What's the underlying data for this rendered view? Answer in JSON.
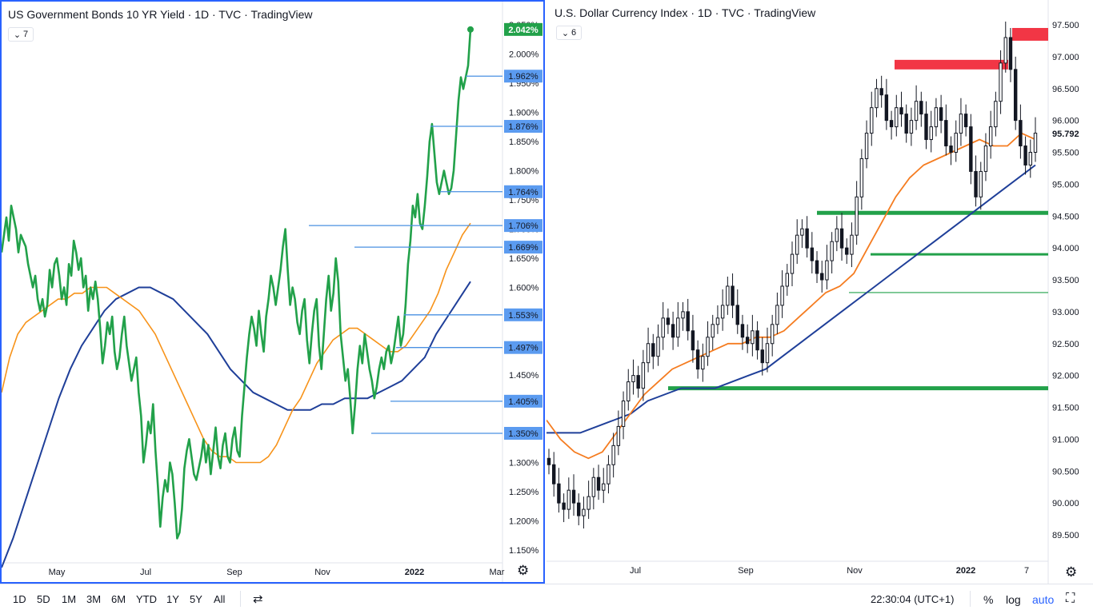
{
  "colors": {
    "green_line": "#22a14a",
    "orange_ma": "#f7931a",
    "orange_ma2": "#f57c20",
    "blue_ma": "#1f3f99",
    "level_line": "#4a90e2",
    "label_bg": "#5b9bf0",
    "price_bg": "#22a14a",
    "resistance": "#f23645",
    "support": "#22a14a",
    "candle": "#131722",
    "frame": "#2962ff"
  },
  "left_pane": {
    "title": "US Government Bonds 10 YR Yield · 1D · TVC · TradingView",
    "collapse_count": "7",
    "gear_icon": "gear-icon"
  },
  "right_pane": {
    "title": "U.S. Dollar Currency Index · 1D · TVC · TradingView",
    "collapse_count": "6",
    "gear_icon": "gear-icon"
  },
  "chart_data": [
    {
      "type": "line",
      "title": "US Government Bonds 10 YR Yield · 1D · TVC · TradingView",
      "x_ticks": [
        "May",
        "Jul",
        "Sep",
        "Nov",
        "2022",
        "Mar"
      ],
      "y_ticks": [
        "2.050%",
        "2.000%",
        "1.950%",
        "1.900%",
        "1.850%",
        "1.800%",
        "1.750%",
        "1.700%",
        "1.650%",
        "1.600%",
        "1.550%",
        "1.500%",
        "1.450%",
        "1.400%",
        "1.350%",
        "1.300%",
        "1.250%",
        "1.200%",
        "1.150%"
      ],
      "ylim": [
        1.13,
        2.08
      ],
      "price_label": "2.042%",
      "level_labels": [
        "1.962%",
        "1.876%",
        "1.764%",
        "1.706%",
        "1.669%",
        "1.553%",
        "1.497%",
        "1.405%",
        "1.350%"
      ],
      "levels": [
        1.962,
        1.876,
        1.764,
        1.706,
        1.669,
        1.553,
        1.497,
        1.405,
        1.35
      ],
      "series": [
        {
          "values": [
            1.66,
            1.69,
            1.72,
            1.68,
            1.74,
            1.72,
            1.7,
            1.66,
            1.69,
            1.68,
            1.67,
            1.64,
            1.62,
            1.6,
            1.62,
            1.58,
            1.56,
            1.58,
            1.55,
            1.57,
            1.63,
            1.6,
            1.64,
            1.65,
            1.62,
            1.58,
            1.6,
            1.57,
            1.64,
            1.62,
            1.68,
            1.66,
            1.63,
            1.65,
            1.6,
            1.62,
            1.56,
            1.6,
            1.58,
            1.61,
            1.58,
            1.53,
            1.47,
            1.5,
            1.54,
            1.52,
            1.55,
            1.49,
            1.46,
            1.48,
            1.52,
            1.55,
            1.5,
            1.47,
            1.44,
            1.46,
            1.48,
            1.42,
            1.38,
            1.3,
            1.33,
            1.37,
            1.35,
            1.4,
            1.32,
            1.26,
            1.19,
            1.24,
            1.27,
            1.25,
            1.3,
            1.28,
            1.23,
            1.17,
            1.18,
            1.22,
            1.29,
            1.32,
            1.34,
            1.31,
            1.28,
            1.27,
            1.29,
            1.31,
            1.34,
            1.3,
            1.33,
            1.28,
            1.32,
            1.36,
            1.31,
            1.29,
            1.33,
            1.35,
            1.31,
            1.3,
            1.34,
            1.36,
            1.32,
            1.31,
            1.38,
            1.43,
            1.48,
            1.52,
            1.55,
            1.53,
            1.5,
            1.56,
            1.52,
            1.49,
            1.55,
            1.58,
            1.62,
            1.6,
            1.57,
            1.6,
            1.63,
            1.67,
            1.7,
            1.63,
            1.57,
            1.6,
            1.58,
            1.54,
            1.52,
            1.56,
            1.58,
            1.51,
            1.47,
            1.52,
            1.56,
            1.58,
            1.5,
            1.46,
            1.52,
            1.58,
            1.62,
            1.56,
            1.59,
            1.65,
            1.61,
            1.52,
            1.48,
            1.44,
            1.46,
            1.41,
            1.35,
            1.4,
            1.46,
            1.5,
            1.47,
            1.52,
            1.49,
            1.46,
            1.44,
            1.41,
            1.43,
            1.46,
            1.48,
            1.46,
            1.49,
            1.5,
            1.47,
            1.49,
            1.52,
            1.55,
            1.5,
            1.52,
            1.57,
            1.64,
            1.68,
            1.74,
            1.72,
            1.76,
            1.71,
            1.7,
            1.74,
            1.79,
            1.85,
            1.88,
            1.83,
            1.78,
            1.76,
            1.78,
            1.8,
            1.78,
            1.76,
            1.77,
            1.8,
            1.86,
            1.92,
            1.96,
            1.94,
            1.96,
            1.98,
            2.042
          ]
        },
        {
          "values": [
            1.42,
            1.48,
            1.52,
            1.54,
            1.55,
            1.56,
            1.57,
            1.58,
            1.58,
            1.59,
            1.59,
            1.6,
            1.6,
            1.6,
            1.59,
            1.58,
            1.57,
            1.56,
            1.54,
            1.52,
            1.49,
            1.46,
            1.43,
            1.4,
            1.37,
            1.34,
            1.32,
            1.31,
            1.31,
            1.3,
            1.3,
            1.3,
            1.3,
            1.31,
            1.33,
            1.36,
            1.39,
            1.41,
            1.44,
            1.47,
            1.49,
            1.51,
            1.52,
            1.53,
            1.53,
            1.52,
            1.51,
            1.5,
            1.49,
            1.49,
            1.5,
            1.52,
            1.54,
            1.56,
            1.59,
            1.63,
            1.66,
            1.69,
            1.71
          ]
        },
        {
          "values": [
            1.12,
            1.17,
            1.23,
            1.29,
            1.35,
            1.41,
            1.46,
            1.5,
            1.53,
            1.56,
            1.58,
            1.59,
            1.6,
            1.6,
            1.59,
            1.58,
            1.56,
            1.54,
            1.52,
            1.49,
            1.46,
            1.44,
            1.42,
            1.41,
            1.4,
            1.39,
            1.39,
            1.39,
            1.4,
            1.4,
            1.41,
            1.41,
            1.41,
            1.42,
            1.43,
            1.44,
            1.46,
            1.48,
            1.52,
            1.55,
            1.58,
            1.61
          ]
        }
      ]
    },
    {
      "type": "line",
      "title": "U.S. Dollar Currency Index · 1D · TVC · TradingView",
      "x_ticks": [
        "Jul",
        "Sep",
        "Nov",
        "2022",
        "7"
      ],
      "y_ticks": [
        "97.500",
        "97.000",
        "96.500",
        "96.000",
        "95.500",
        "95.000",
        "94.500",
        "94.000",
        "93.500",
        "93.000",
        "92.500",
        "92.000",
        "91.500",
        "91.000",
        "90.500",
        "90.000",
        "89.500"
      ],
      "ylim": [
        89.2,
        97.6
      ],
      "price_label": "95.792",
      "resistance_zones": [
        [
          96.8,
          96.95
        ],
        [
          97.25,
          97.45
        ]
      ],
      "support_levels": [
        94.55,
        93.9,
        91.8
      ],
      "thin_support": [
        93.3
      ],
      "series": [
        {
          "values": [
            90.6,
            90.3,
            90.0,
            89.9,
            90.2,
            90.0,
            89.8,
            89.9,
            90.1,
            90.4,
            90.2,
            90.3,
            90.6,
            90.9,
            91.2,
            91.6,
            91.9,
            92.0,
            91.8,
            92.2,
            92.5,
            92.3,
            92.6,
            92.9,
            92.8,
            92.6,
            92.9,
            93.0,
            92.7,
            92.4,
            92.1,
            92.3,
            92.6,
            92.8,
            92.9,
            93.1,
            93.4,
            93.1,
            92.8,
            92.6,
            92.5,
            92.7,
            92.4,
            92.2,
            92.5,
            92.8,
            93.1,
            93.4,
            93.6,
            93.9,
            94.2,
            94.3,
            94.0,
            93.8,
            93.6,
            93.5,
            93.8,
            94.1,
            94.3,
            94.0,
            93.9,
            94.2,
            94.8,
            95.4,
            95.8,
            96.2,
            96.5,
            96.4,
            96.0,
            95.9,
            96.2,
            96.1,
            95.8,
            96.0,
            96.3,
            96.1,
            95.7,
            95.9,
            96.2,
            96.0,
            95.6,
            95.5,
            95.8,
            96.1,
            95.9,
            95.2,
            94.8,
            95.2,
            95.6,
            95.9,
            96.3,
            96.9,
            97.3,
            96.8,
            96.0,
            95.6,
            95.3,
            95.5,
            95.8
          ]
        },
        {
          "values": [
            91.3,
            91.0,
            90.8,
            90.7,
            90.8,
            91.1,
            91.4,
            91.7,
            91.9,
            92.1,
            92.2,
            92.3,
            92.4,
            92.5,
            92.5,
            92.6,
            92.6,
            92.7,
            92.9,
            93.1,
            93.3,
            93.4,
            93.6,
            94.0,
            94.4,
            94.8,
            95.1,
            95.3,
            95.4,
            95.5,
            95.6,
            95.7,
            95.6,
            95.6,
            95.8,
            95.7
          ]
        },
        {
          "values": [
            91.1,
            91.1,
            91.1,
            91.2,
            91.3,
            91.4,
            91.6,
            91.7,
            91.8,
            91.8,
            91.8,
            91.9,
            92.0,
            92.1,
            92.3,
            92.5,
            92.7,
            92.9,
            93.1,
            93.3,
            93.5,
            93.7,
            93.9,
            94.1,
            94.3,
            94.5,
            94.7,
            94.9,
            95.1,
            95.3
          ]
        }
      ]
    }
  ],
  "toolbar": {
    "timeframes": [
      "1D",
      "5D",
      "1M",
      "3M",
      "6M",
      "YTD",
      "1Y",
      "5Y",
      "All"
    ],
    "compare_icon": "compare-icon",
    "time": "22:30:04 (UTC+1)",
    "percent": "%",
    "log": "log",
    "auto": "auto",
    "fullscreen_icon": "fullscreen-icon"
  }
}
